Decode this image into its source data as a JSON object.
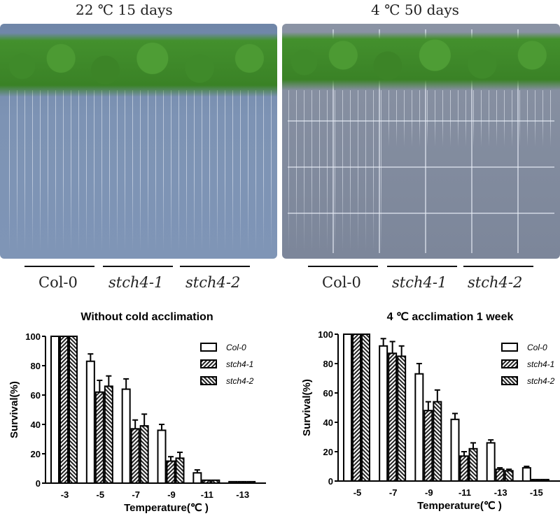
{
  "photos": [
    {
      "title": "22 ℃ 15 days",
      "groups": [
        "Col-0",
        "stch4-1",
        "stch4-2"
      ]
    },
    {
      "title": "4 ℃ 50 days",
      "groups": [
        "Col-0",
        "stch4-1",
        "stch4-2"
      ]
    }
  ],
  "chart_data": [
    {
      "type": "bar",
      "title": "Without cold acclimation",
      "xlabel": "Temperature(℃ )",
      "ylabel": "Survival(%)",
      "ylim": [
        0,
        100
      ],
      "yticks": [
        0,
        20,
        40,
        60,
        80,
        100
      ],
      "categories": [
        "-3",
        "-5",
        "-7",
        "-9",
        "-11",
        "-13"
      ],
      "legend_position": "top-right",
      "series": [
        {
          "name": "Col-0",
          "values": [
            100,
            83,
            64,
            36,
            7,
            1
          ],
          "errors": [
            0,
            5,
            7,
            4,
            2,
            0.5
          ]
        },
        {
          "name": "stch4-1",
          "values": [
            100,
            62,
            37,
            15,
            2,
            1
          ],
          "errors": [
            0,
            8,
            6,
            3,
            0.5,
            0.5
          ]
        },
        {
          "name": "stch4-2",
          "values": [
            100,
            66,
            39,
            17,
            2,
            1
          ],
          "errors": [
            0,
            7,
            8,
            4,
            0.5,
            0.5
          ]
        }
      ]
    },
    {
      "type": "bar",
      "title": "4 ℃ acclimation 1 week",
      "xlabel": "Temperature(℃ )",
      "ylabel": "Survival(%)",
      "ylim": [
        0,
        100
      ],
      "yticks": [
        0,
        20,
        40,
        60,
        80,
        100
      ],
      "categories": [
        "-5",
        "-7",
        "-9",
        "-11",
        "-13",
        "-15"
      ],
      "legend_position": "top-right",
      "series": [
        {
          "name": "Col-0",
          "values": [
            100,
            92,
            73,
            42,
            26,
            9
          ],
          "errors": [
            0,
            5,
            7,
            4,
            2,
            1
          ]
        },
        {
          "name": "stch4-1",
          "values": [
            100,
            87,
            48,
            17,
            8,
            1
          ],
          "errors": [
            0,
            8,
            6,
            3,
            1,
            0.5
          ]
        },
        {
          "name": "stch4-2",
          "values": [
            100,
            85,
            54,
            22,
            7,
            1
          ],
          "errors": [
            0,
            7,
            8,
            4,
            1,
            0.5
          ]
        }
      ]
    }
  ]
}
